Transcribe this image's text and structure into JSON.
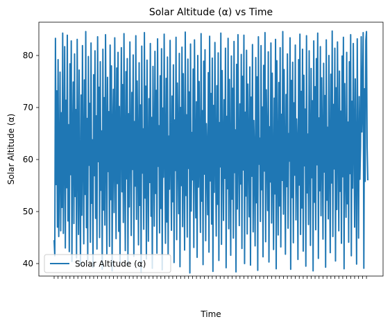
{
  "chart_data": {
    "type": "line",
    "title": "Solar Altitude (α) vs Time",
    "xlabel": "Time",
    "ylabel": "Solar Altitude (α)",
    "ylim": [
      37.6,
      86.4
    ],
    "yticks": [
      40,
      50,
      60,
      70,
      80
    ],
    "grid": false,
    "legend_position": "lower-left",
    "series": [
      {
        "name": "Solar Altitude (α)",
        "color": "#1f77b4",
        "values": [
          44.5,
          41.5,
          83.3,
          55.2,
          73.2,
          47.0,
          79.2,
          45.2,
          58.5,
          76.8,
          46.3,
          69.0,
          50.8,
          84.3,
          45.8,
          62.1,
          81.7,
          43.0,
          71.4,
          54.6,
          83.9,
          48.2,
          66.7,
          42.3,
          78.4,
          57.1,
          82.8,
          40.4,
          64.2,
          74.9,
          47.7,
          80.3,
          52.9,
          69.6,
          41.1,
          83.1,
          60.4,
          45.6,
          77.2,
          55.8,
          39.9,
          72.4,
          49.3,
          81.9,
          61.3,
          43.8,
          75.3,
          53.3,
          84.6,
          46.9,
          67.9,
          40.7,
          79.8,
          58.9,
          70.8,
          44.1,
          82.4,
          51.6,
          63.8,
          39.3,
          76.3,
          56.9,
          80.9,
          48.7,
          68.4,
          42.8,
          83.6,
          59.6,
          73.9,
          45.0,
          78.8,
          54.1,
          65.5,
          38.9,
          81.2,
          50.3,
          71.9,
          47.4,
          84.0,
          62.7,
          41.9,
          75.8,
          57.7,
          69.2,
          43.3,
          82.0,
          52.3,
          78.0,
          38.6,
          66.1,
          73.5,
          49.8,
          83.4,
          60.9,
          44.8,
          77.6,
          55.4,
          80.6,
          46.2,
          70.2,
          40.1,
          64.8,
          81.5,
          53.8,
          74.4,
          47.9,
          84.2,
          59.2,
          42.5,
          76.9,
          56.3,
          79.4,
          39.6,
          68.8,
          50.9,
          82.6,
          63.2,
          45.4,
          72.9,
          58.1,
          80.1,
          41.4,
          67.3,
          54.9,
          83.8,
          48.5,
          75.1,
          61.8,
          43.6,
          78.6,
          51.2,
          70.5,
          38.3,
          81.8,
          57.4,
          65.9,
          46.6,
          84.4,
          52.6,
          74.1,
          40.9,
          79.1,
          60.1,
          44.3,
          71.7,
          55.6,
          82.3,
          49.1,
          68.1,
          39.1,
          77.9,
          62.4,
          47.2,
          80.8,
          53.5,
          73.3,
          42.0,
          83.2,
          58.7,
          66.5,
          45.9,
          76.1,
          50.6,
          81.3,
          38.8,
          69.9,
          56.6,
          84.1,
          61.1,
          43.9,
          75.6,
          48.0,
          79.7,
          41.7,
          64.5,
          54.3,
          82.9,
          59.9,
          46.4,
          72.2,
          51.9,
          78.2,
          40.2,
          67.6,
          57.9,
          83.5,
          44.6,
          74.7,
          63.5,
          49.6,
          80.4,
          39.4,
          70.0,
          55.0,
          81.6,
          47.1,
          76.5,
          60.6,
          42.6,
          84.5,
          53.1,
          68.6,
          45.1,
          79.3,
          58.3,
          73.0,
          38.2,
          82.2,
          50.1,
          65.2,
          56.1,
          77.4,
          43.1,
          83.0,
          62.0,
          48.8,
          71.1,
          41.2,
          80.0,
          54.7,
          75.0,
          59.4,
          46.0,
          84.2,
          52.0,
          69.4,
          39.8,
          78.9,
          57.2,
          81.1,
          44.4,
          66.9,
          61.5,
          49.4,
          76.7,
          42.2,
          83.7,
          55.9,
          72.7,
          47.6,
          79.5,
          38.5,
          70.4,
          53.7,
          82.5,
          60.3,
          45.3,
          74.2,
          51.4,
          80.5,
          40.6,
          67.1,
          58.6,
          84.3,
          43.7,
          77.1,
          63.0,
          48.3,
          71.5,
          56.4,
          81.4,
          39.2,
          68.3,
          54.4,
          83.3,
          46.7,
          75.4,
          59.8,
          41.6,
          79.9,
          52.4,
          73.7,
          44.9,
          82.7,
          57.5,
          65.7,
          38.4,
          78.3,
          50.5,
          84.0,
          61.9,
          47.3,
          70.7,
          55.3,
          80.2,
          42.9,
          76.0,
          58.0,
          83.9,
          40.0,
          69.1,
          53.0,
          81.0,
          45.7,
          74.5,
          62.2,
          49.0,
          77.8,
          39.7,
          72.0,
          56.8,
          82.1,
          46.1,
          67.5,
          60.7,
          43.4,
          79.6,
          51.7,
          75.9,
          38.7,
          83.6,
          59.1,
          64.1,
          48.1,
          81.9,
          54.2,
          70.1,
          41.3,
          78.1,
          57.8,
          84.4,
          44.2,
          73.4,
          62.9,
          50.2,
          80.7,
          40.3,
          66.3,
          55.7,
          82.4,
          47.8,
          76.6,
          58.4,
          42.7,
          71.8,
          53.4,
          83.1,
          39.0,
          79.0,
          60.5,
          45.5,
          74.8,
          51.1,
          81.5,
          43.2,
          68.7,
          56.0,
          84.6,
          49.5,
          77.3,
          61.4,
          41.8,
          72.5,
          54.8,
          80.3,
          46.8,
          65.0,
          59.7,
          83.4,
          38.9,
          75.2,
          52.7,
          78.7,
          44.0,
          70.9,
          57.0,
          82.0,
          48.4,
          67.8,
          62.6,
          40.8,
          79.2,
          55.1,
          84.1,
          45.6,
          73.1,
          50.7,
          81.2,
          42.4,
          76.2,
          58.8,
          69.7,
          39.5,
          83.8,
          53.6,
          64.9,
          47.5,
          80.9,
          61.7,
          43.5,
          77.5,
          56.5,
          71.3,
          38.6,
          82.8,
          51.8,
          74.0,
          46.5,
          79.4,
          59.0,
          84.3,
          41.0,
          68.0,
          54.0,
          81.7,
          49.2,
          75.7,
          63.3,
          44.7,
          78.5,
          57.6,
          72.3,
          39.3,
          83.0,
          52.2,
          66.2,
          48.6,
          80.0,
          60.0,
          42.1,
          76.4,
          55.5,
          84.7,
          45.2,
          70.6,
          58.2,
          81.4,
          40.5,
          73.8,
          50.4,
          82.6,
          62.8,
          46.3,
          77.0,
          53.9,
          69.3,
          43.9,
          79.9,
          56.7,
          83.5,
          39.0,
          74.6,
          60.2,
          48.9,
          80.6,
          51.5,
          67.2,
          44.1,
          78.8,
          57.3,
          84.0,
          41.5,
          71.2,
          54.5,
          82.3,
          63.7,
          47.0,
          75.5,
          59.5,
          39.9,
          83.2,
          61.2,
          44.9,
          72.1,
          56.2,
          62.5,
          83.6,
          65.3,
          71.0,
          84.4,
          39.1,
          73.6,
          55.8,
          82.9,
          84.6,
          62.4,
          56.0
        ]
      }
    ]
  }
}
